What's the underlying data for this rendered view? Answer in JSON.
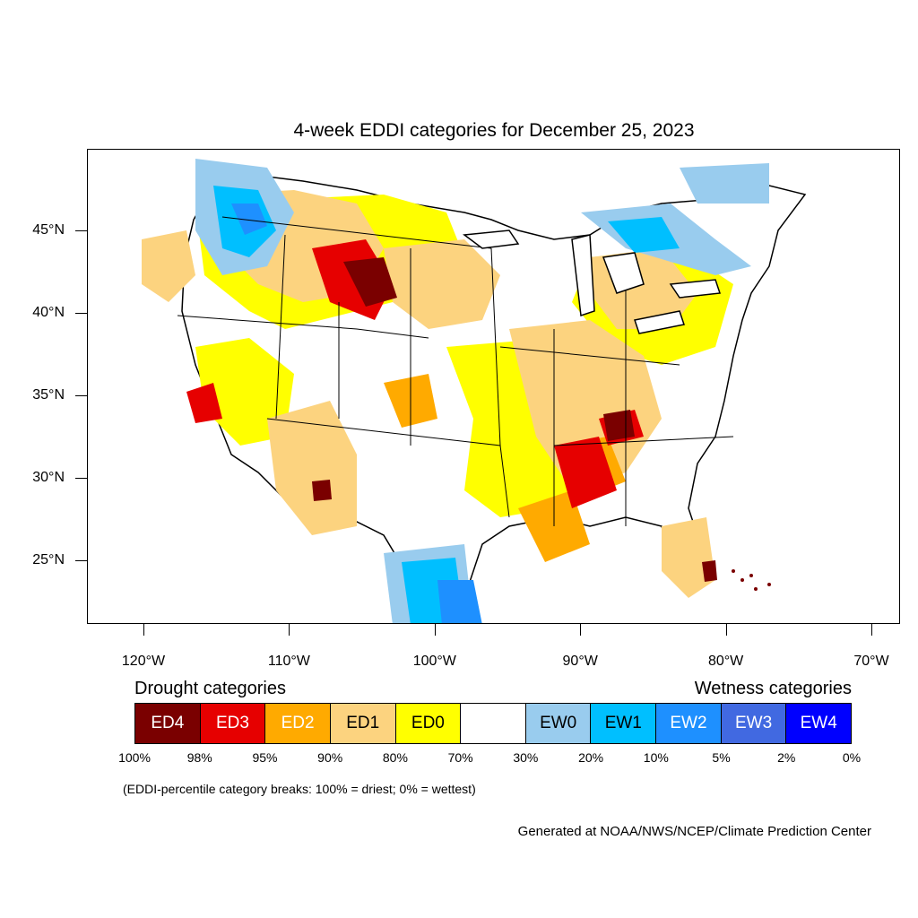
{
  "title": "4-week EDDI categories for December 25, 2023",
  "axes": {
    "lon_ticks": [
      {
        "label": "120°W",
        "lon": -120
      },
      {
        "label": "110°W",
        "lon": -110
      },
      {
        "label": "100°W",
        "lon": -100
      },
      {
        "label": "90°W",
        "lon": -90
      },
      {
        "label": "80°W",
        "lon": -80
      },
      {
        "label": "70°W",
        "lon": -70
      }
    ],
    "lat_ticks": [
      {
        "label": "45°N",
        "lat": 45
      },
      {
        "label": "40°N",
        "lat": 40
      },
      {
        "label": "35°N",
        "lat": 35
      },
      {
        "label": "30°N",
        "lat": 30
      },
      {
        "label": "25°N",
        "lat": 25
      }
    ]
  },
  "legend": {
    "drought_heading": "Drought categories",
    "wetness_heading": "Wetness categories",
    "categories": [
      {
        "label": "ED4",
        "color": "#7a0000",
        "text_color": "#ffffff"
      },
      {
        "label": "ED3",
        "color": "#e60000",
        "text_color": "#ffffff"
      },
      {
        "label": "ED2",
        "color": "#ffaa00",
        "text_color": "#ffffff"
      },
      {
        "label": "ED1",
        "color": "#fcd37f",
        "text_color": "#000000"
      },
      {
        "label": "ED0",
        "color": "#ffff00",
        "text_color": "#000000"
      },
      {
        "label": "",
        "color": "#ffffff",
        "text_color": "#000000"
      },
      {
        "label": "EW0",
        "color": "#99ccee",
        "text_color": "#000000"
      },
      {
        "label": "EW1",
        "color": "#00bfff",
        "text_color": "#000000"
      },
      {
        "label": "EW2",
        "color": "#1e90ff",
        "text_color": "#ffffff"
      },
      {
        "label": "EW3",
        "color": "#4169e1",
        "text_color": "#ffffff"
      },
      {
        "label": "EW4",
        "color": "#0000ff",
        "text_color": "#ffffff"
      }
    ],
    "breaks": [
      "100%",
      "98%",
      "95%",
      "90%",
      "80%",
      "70%",
      "30%",
      "20%",
      "10%",
      "5%",
      "2%",
      "0%"
    ]
  },
  "note": "(EDDI-percentile category breaks: 100% = driest; 0% = wettest)",
  "credit": "Generated at NOAA/NWS/NCEP/Climate Prediction Center",
  "map_regions": [
    {
      "name": "northern-rockies",
      "category": "ED1"
    },
    {
      "name": "wyoming-colorado-core",
      "category": "ED4"
    },
    {
      "name": "gulf-coast",
      "category": "ED3"
    },
    {
      "name": "tennessee-valley",
      "category": "ED4"
    },
    {
      "name": "pacific-northwest",
      "category": "EW2"
    },
    {
      "name": "great-lakes-north",
      "category": "EW1"
    },
    {
      "name": "south-texas",
      "category": "EW1"
    },
    {
      "name": "florida-south",
      "category": "ED4"
    }
  ]
}
